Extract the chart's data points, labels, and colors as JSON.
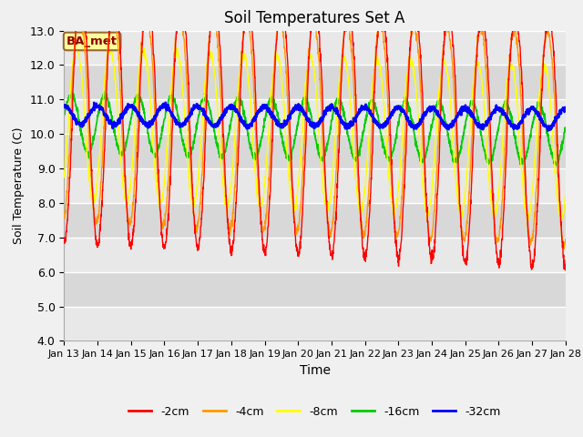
{
  "title": "Soil Temperatures Set A",
  "xlabel": "Time",
  "ylabel": "Soil Temperature (C)",
  "ylim": [
    4.0,
    13.0
  ],
  "yticks": [
    4.0,
    5.0,
    6.0,
    7.0,
    8.0,
    9.0,
    10.0,
    11.0,
    12.0,
    13.0
  ],
  "xtick_labels": [
    "Jan 13",
    "Jan 14",
    "Jan 15",
    "Jan 16",
    "Jan 17",
    "Jan 18",
    "Jan 19",
    "Jan 20",
    "Jan 21",
    "Jan 22",
    "Jan 23",
    "Jan 24",
    "Jan 25",
    "Jan 26",
    "Jan 27",
    "Jan 28"
  ],
  "legend_labels": [
    "-2cm",
    "-4cm",
    "-8cm",
    "-16cm",
    "-32cm"
  ],
  "legend_colors": [
    "#ff0000",
    "#ff9900",
    "#ffff00",
    "#00cc00",
    "#0000ff"
  ],
  "line_widths": [
    1.0,
    1.0,
    1.0,
    1.2,
    1.8
  ],
  "annotation_text": "BA_met",
  "annotation_color": "#8B0000",
  "annotation_bg": "#ffff99",
  "annotation_border": "#996633",
  "bg_color": "#f0f0f0",
  "band_colors": [
    "#e8e8e8",
    "#d8d8d8"
  ],
  "n_days": 15,
  "n_pts_per_day": 144
}
